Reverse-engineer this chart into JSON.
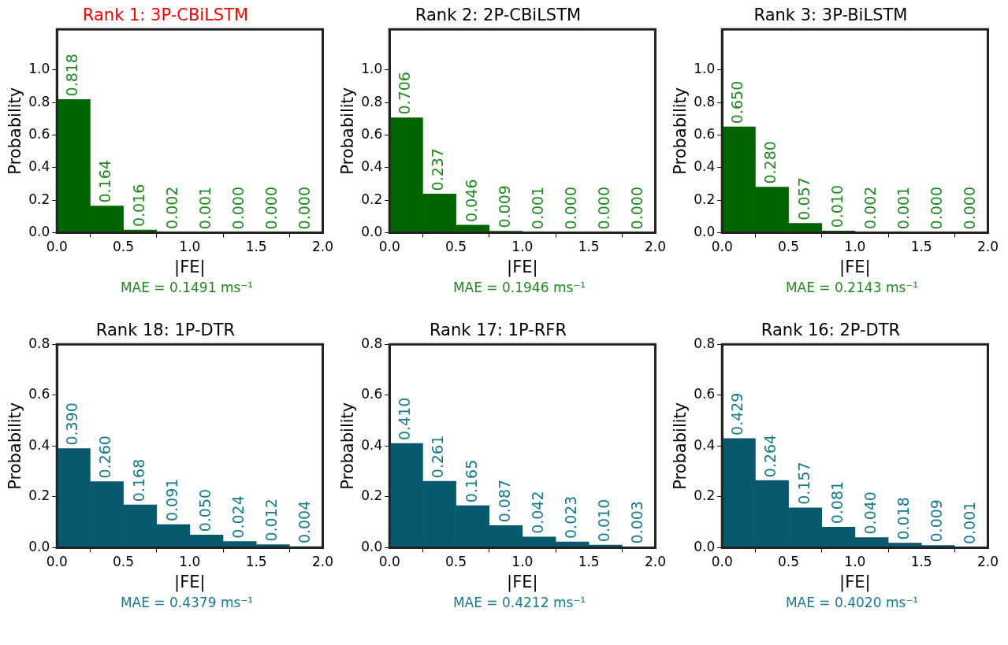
{
  "chart_data": [
    {
      "type": "histogram",
      "title": "Rank 1: 3P-CBiLSTM",
      "xlabel": "|FE|",
      "ylabel": "Probability",
      "annotations": [
        "MAE = 0.1491 ms⁻¹"
      ],
      "bins": [
        0,
        0.25,
        0.5,
        0.75,
        1,
        1.25,
        1.5,
        1.75,
        2
      ],
      "values": [
        0.818,
        0.164,
        0.016,
        0.002,
        0.001,
        0,
        0,
        0
      ],
      "value_labels": [
        "0.818",
        "0.164",
        "0.016",
        "0.002",
        "0.001",
        "0.000",
        "0.000",
        "0.000"
      ],
      "color": "#006400",
      "xlim": [
        0,
        2
      ],
      "xticks": [
        {
          "value": 0,
          "label": "0.0"
        },
        {
          "value": 0.5,
          "label": "0.5"
        },
        {
          "value": 1,
          "label": "1.0"
        },
        {
          "value": 1.5,
          "label": "1.5"
        },
        {
          "value": 2,
          "label": "2.0"
        }
      ],
      "ylim": [
        0,
        1.25
      ],
      "yticks": [
        {
          "value": 0,
          "label": "0.0"
        },
        {
          "value": 0.2,
          "label": "0.2"
        },
        {
          "value": 0.4,
          "label": "0.4"
        },
        {
          "value": 0.6,
          "label": "0.6"
        },
        {
          "value": 0.8,
          "label": "0.8"
        },
        {
          "value": 1,
          "label": "1.0"
        }
      ]
    },
    {
      "type": "histogram",
      "title": "Rank 2: 2P-CBiLSTM",
      "xlabel": "|FE|",
      "ylabel": "Probability",
      "annotations": [
        "MAE = 0.1946 ms⁻¹"
      ],
      "bins": [
        0,
        0.25,
        0.5,
        0.75,
        1,
        1.25,
        1.5,
        1.75,
        2
      ],
      "values": [
        0.706,
        0.237,
        0.046,
        0.009,
        0.001,
        0,
        0,
        0
      ],
      "value_labels": [
        "0.706",
        "0.237",
        "0.046",
        "0.009",
        "0.001",
        "0.000",
        "0.000",
        "0.000"
      ],
      "color": "#006400",
      "xlim": [
        0,
        2
      ],
      "xticks": [
        {
          "value": 0,
          "label": "0.0"
        },
        {
          "value": 0.5,
          "label": "0.5"
        },
        {
          "value": 1,
          "label": "1.0"
        },
        {
          "value": 1.5,
          "label": "1.5"
        },
        {
          "value": 2,
          "label": "2.0"
        }
      ],
      "ylim": [
        0,
        1.25
      ],
      "yticks": [
        {
          "value": 0,
          "label": "0.0"
        },
        {
          "value": 0.2,
          "label": "0.2"
        },
        {
          "value": 0.4,
          "label": "0.4"
        },
        {
          "value": 0.6,
          "label": "0.6"
        },
        {
          "value": 0.8,
          "label": "0.8"
        },
        {
          "value": 1,
          "label": "1.0"
        }
      ]
    },
    {
      "type": "histogram",
      "title": "Rank 3: 3P-BiLSTM",
      "xlabel": "|FE|",
      "ylabel": "Probability",
      "annotations": [
        "MAE = 0.2143 ms⁻¹"
      ],
      "bins": [
        0,
        0.25,
        0.5,
        0.75,
        1,
        1.25,
        1.5,
        1.75,
        2
      ],
      "values": [
        0.65,
        0.28,
        0.057,
        0.01,
        0.002,
        0.001,
        0,
        0
      ],
      "value_labels": [
        "0.650",
        "0.280",
        "0.057",
        "0.010",
        "0.002",
        "0.001",
        "0.000",
        "0.000"
      ],
      "color": "#006400",
      "xlim": [
        0,
        2
      ],
      "xticks": [
        {
          "value": 0,
          "label": "0.0"
        },
        {
          "value": 0.5,
          "label": "0.5"
        },
        {
          "value": 1,
          "label": "1.0"
        },
        {
          "value": 1.5,
          "label": "1.5"
        },
        {
          "value": 2,
          "label": "2.0"
        }
      ],
      "ylim": [
        0,
        1.25
      ],
      "yticks": [
        {
          "value": 0,
          "label": "0.0"
        },
        {
          "value": 0.2,
          "label": "0.2"
        },
        {
          "value": 0.4,
          "label": "0.4"
        },
        {
          "value": 0.6,
          "label": "0.6"
        },
        {
          "value": 0.8,
          "label": "0.8"
        },
        {
          "value": 1,
          "label": "1.0"
        }
      ]
    },
    {
      "type": "histogram",
      "title": "Rank 18: 1P-DTR",
      "xlabel": "|FE|",
      "ylabel": "Probability",
      "annotations": [
        "MAE = 0.4379 ms⁻¹"
      ],
      "bins": [
        0,
        0.25,
        0.5,
        0.75,
        1,
        1.25,
        1.5,
        1.75,
        2
      ],
      "values": [
        0.39,
        0.26,
        0.168,
        0.091,
        0.05,
        0.024,
        0.012,
        0.004
      ],
      "value_labels": [
        "0.390",
        "0.260",
        "0.168",
        "0.091",
        "0.050",
        "0.024",
        "0.012",
        "0.004"
      ],
      "color": "#08586e",
      "xlim": [
        0,
        2
      ],
      "xticks": [
        {
          "value": 0,
          "label": "0.0"
        },
        {
          "value": 0.5,
          "label": "0.5"
        },
        {
          "value": 1,
          "label": "1.0"
        },
        {
          "value": 1.5,
          "label": "1.5"
        },
        {
          "value": 2,
          "label": "2.0"
        }
      ],
      "ylim": [
        0,
        0.8
      ],
      "yticks": [
        {
          "value": 0,
          "label": "0.0"
        },
        {
          "value": 0.2,
          "label": "0.2"
        },
        {
          "value": 0.4,
          "label": "0.4"
        },
        {
          "value": 0.6,
          "label": "0.6"
        },
        {
          "value": 0.8,
          "label": "0.8"
        }
      ]
    },
    {
      "type": "histogram",
      "title": "Rank 17: 1P-RFR",
      "xlabel": "|FE|",
      "ylabel": "Probability",
      "annotations": [
        "MAE = 0.4212 ms⁻¹"
      ],
      "bins": [
        0,
        0.25,
        0.5,
        0.75,
        1,
        1.25,
        1.5,
        1.75,
        2
      ],
      "values": [
        0.41,
        0.261,
        0.165,
        0.087,
        0.042,
        0.023,
        0.01,
        0.003
      ],
      "value_labels": [
        "0.410",
        "0.261",
        "0.165",
        "0.087",
        "0.042",
        "0.023",
        "0.010",
        "0.003"
      ],
      "color": "#08586e",
      "xlim": [
        0,
        2
      ],
      "xticks": [
        {
          "value": 0,
          "label": "0.0"
        },
        {
          "value": 0.5,
          "label": "0.5"
        },
        {
          "value": 1,
          "label": "1.0"
        },
        {
          "value": 1.5,
          "label": "1.5"
        },
        {
          "value": 2,
          "label": "2.0"
        }
      ],
      "ylim": [
        0,
        0.8
      ],
      "yticks": [
        {
          "value": 0,
          "label": "0.0"
        },
        {
          "value": 0.2,
          "label": "0.2"
        },
        {
          "value": 0.4,
          "label": "0.4"
        },
        {
          "value": 0.6,
          "label": "0.6"
        },
        {
          "value": 0.8,
          "label": "0.8"
        }
      ]
    },
    {
      "type": "histogram",
      "title": "Rank 16: 2P-DTR",
      "xlabel": "|FE|",
      "ylabel": "Probability",
      "annotations": [
        "MAE = 0.4020 ms⁻¹"
      ],
      "bins": [
        0,
        0.25,
        0.5,
        0.75,
        1,
        1.25,
        1.5,
        1.75,
        2
      ],
      "values": [
        0.429,
        0.264,
        0.157,
        0.081,
        0.04,
        0.018,
        0.009,
        0.001
      ],
      "value_labels": [
        "0.429",
        "0.264",
        "0.157",
        "0.081",
        "0.040",
        "0.018",
        "0.009",
        "0.001"
      ],
      "color": "#08586e",
      "xlim": [
        0,
        2
      ],
      "xticks": [
        {
          "value": 0,
          "label": "0.0"
        },
        {
          "value": 0.5,
          "label": "0.5"
        },
        {
          "value": 1,
          "label": "1.0"
        },
        {
          "value": 1.5,
          "label": "1.5"
        },
        {
          "value": 2,
          "label": "2.0"
        }
      ],
      "ylim": [
        0,
        0.8
      ],
      "yticks": [
        {
          "value": 0,
          "label": "0.0"
        },
        {
          "value": 0.2,
          "label": "0.2"
        },
        {
          "value": 0.4,
          "label": "0.4"
        },
        {
          "value": 0.6,
          "label": "0.6"
        },
        {
          "value": 0.8,
          "label": "0.8"
        }
      ]
    }
  ]
}
